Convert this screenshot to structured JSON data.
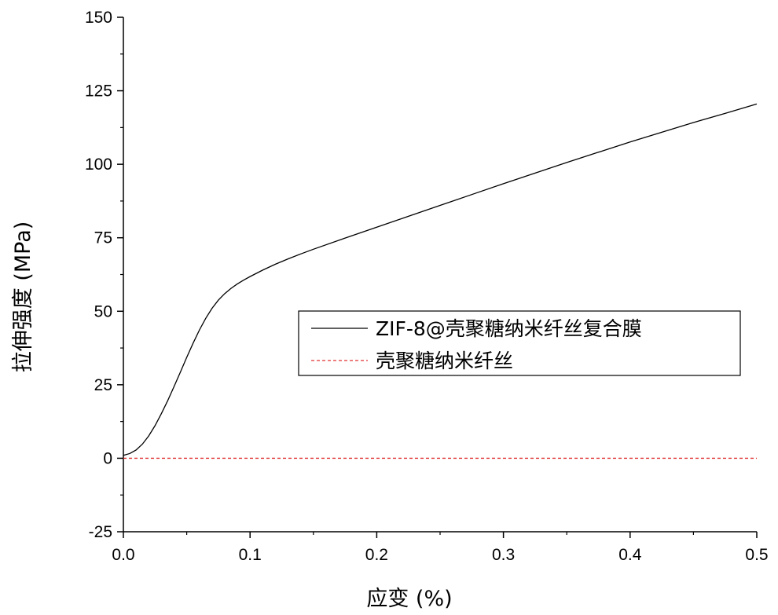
{
  "chart_data": {
    "type": "line",
    "xlabel": "应变 (%)",
    "ylabel": "拉伸强度 (MPa)",
    "xlim": [
      0,
      0.5
    ],
    "ylim": [
      -25,
      150
    ],
    "xticks": [
      0.0,
      0.1,
      0.2,
      0.3,
      0.4,
      0.5
    ],
    "xtick_labels": [
      "0.0",
      "0.1",
      "0.2",
      "0.3",
      "0.4",
      "0.5"
    ],
    "yticks": [
      -25,
      0,
      25,
      50,
      75,
      100,
      125,
      150
    ],
    "ytick_labels": [
      "-25",
      "0",
      "25",
      "50",
      "75",
      "100",
      "125",
      "150"
    ],
    "grid": false,
    "legend_position": "center-right",
    "series": [
      {
        "name": "ZIF-8@壳聚糖纳米纤丝复合膜",
        "color": "#000000",
        "style": "solid",
        "x": [
          0.0,
          0.005,
          0.01,
          0.015,
          0.02,
          0.025,
          0.03,
          0.035,
          0.04,
          0.045,
          0.05,
          0.055,
          0.06,
          0.065,
          0.07,
          0.075,
          0.08,
          0.085,
          0.09,
          0.095,
          0.1,
          0.11,
          0.12,
          0.13,
          0.14,
          0.15,
          0.175,
          0.2,
          0.225,
          0.25,
          0.275,
          0.3,
          0.325,
          0.35,
          0.375,
          0.4,
          0.425,
          0.45,
          0.475,
          0.5
        ],
        "y": [
          1,
          1.6,
          2.8,
          4.8,
          7.6,
          11.1,
          15.2,
          19.6,
          24.4,
          29.3,
          34.3,
          39.1,
          43.6,
          47.6,
          51.0,
          53.8,
          56.0,
          57.8,
          59.3,
          60.6,
          61.8,
          64.0,
          66.0,
          67.8,
          69.5,
          71.1,
          74.9,
          78.6,
          82.3,
          86.0,
          89.7,
          93.4,
          97.0,
          100.6,
          104.1,
          107.6,
          110.9,
          114.2,
          117.3,
          120.5
        ]
      },
      {
        "name": "壳聚糖纳米纤丝",
        "color": "#e03030",
        "style": "dashed",
        "x": [
          0.0,
          0.5
        ],
        "y": [
          0,
          0
        ]
      }
    ]
  }
}
